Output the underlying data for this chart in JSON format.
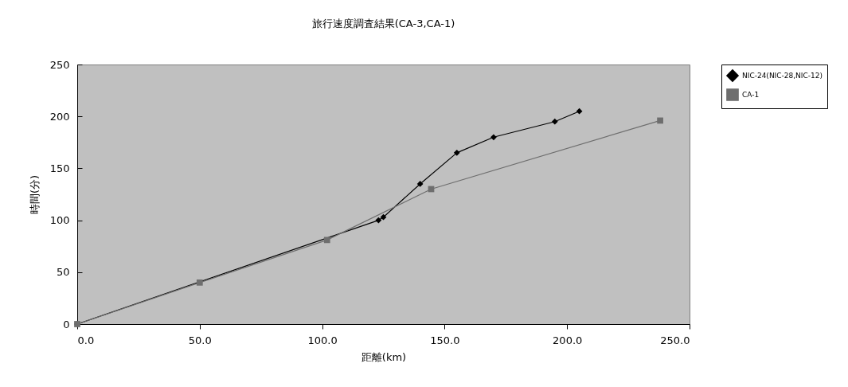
{
  "chart_data": {
    "type": "line",
    "title": "旅行速度調査結果(CA-3,CA-1)",
    "xlabel": "距離(km)",
    "ylabel": "時間(分)",
    "series": [
      {
        "name": "NIC-24(NIC-28,NIC-12)",
        "color": "#000000",
        "marker": "diamond",
        "x": [
          0,
          123,
          125,
          140,
          155,
          170,
          195,
          205
        ],
        "values": [
          0,
          100,
          103,
          135,
          165,
          180,
          195,
          205
        ]
      },
      {
        "name": "CA-1",
        "color": "#6e6e6e",
        "marker": "square",
        "x": [
          0,
          50,
          102,
          144.5,
          238
        ],
        "values": [
          0,
          40,
          81,
          130,
          196
        ]
      }
    ],
    "xlim": [
      0,
      250
    ],
    "xticks": [
      {
        "value": 0,
        "label": "0.0"
      },
      {
        "value": 50,
        "label": "50.0"
      },
      {
        "value": 100,
        "label": "100.0"
      },
      {
        "value": 150,
        "label": "150.0"
      },
      {
        "value": 200,
        "label": "200.0"
      },
      {
        "value": 250,
        "label": "250.0"
      }
    ],
    "ylim": [
      0,
      250
    ],
    "yticks": [
      0,
      50,
      100,
      150,
      200,
      250
    ],
    "grid": false,
    "legend": "right"
  }
}
